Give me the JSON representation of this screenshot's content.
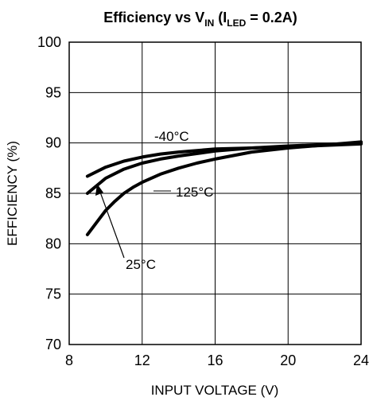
{
  "chart_data": {
    "type": "line",
    "title": {
      "main": "Efficiency vs V",
      "sub_in": "IN",
      "paren_open": " (I",
      "sub_led": "LED",
      "paren_rest": " = 0.2A)"
    },
    "xlabel": "INPUT VOLTAGE (V)",
    "ylabel": "EFFICIENCY (%)",
    "xlim": [
      8,
      24
    ],
    "ylim": [
      70,
      100
    ],
    "xticks": [
      8,
      12,
      16,
      20,
      24
    ],
    "yticks": [
      70,
      75,
      80,
      85,
      90,
      95,
      100
    ],
    "grid": true,
    "line_color": "#000000",
    "series": [
      {
        "name": "-40°C",
        "x": [
          9,
          10,
          11,
          12,
          13,
          14,
          16,
          18,
          20,
          22,
          24
        ],
        "y": [
          86.7,
          87.6,
          88.2,
          88.6,
          88.9,
          89.1,
          89.4,
          89.5,
          89.6,
          89.75,
          89.9
        ]
      },
      {
        "name": "25°C",
        "x": [
          9,
          10,
          11,
          12,
          13,
          14,
          16,
          18,
          20,
          22,
          24
        ],
        "y": [
          85.0,
          86.5,
          87.4,
          88.0,
          88.4,
          88.7,
          89.2,
          89.5,
          89.7,
          89.85,
          90.0
        ]
      },
      {
        "name": "125°C",
        "x": [
          9,
          9.5,
          10,
          10.5,
          11,
          11.5,
          12,
          13,
          14,
          15,
          16,
          18,
          20,
          22,
          24
        ],
        "y": [
          80.9,
          82.1,
          83.3,
          84.2,
          85.0,
          85.6,
          86.1,
          86.9,
          87.5,
          88.0,
          88.4,
          89.1,
          89.5,
          89.8,
          90.1
        ]
      }
    ],
    "annotations": [
      {
        "label": "-40°C"
      },
      {
        "label": "125°C"
      },
      {
        "label": "25°C"
      }
    ]
  }
}
